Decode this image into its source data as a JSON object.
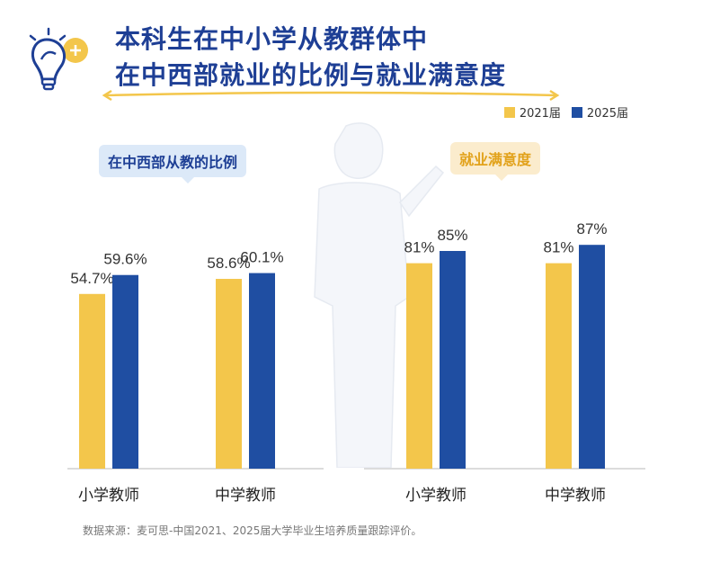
{
  "title": {
    "line1": "本科生在中小学从教群体中",
    "line2": "在中西部就业的比例与就业满意度"
  },
  "legend": {
    "items": [
      {
        "label": "2021届",
        "color": "#f3c64b"
      },
      {
        "label": "2025届",
        "color": "#1f4ea2"
      }
    ]
  },
  "badges": {
    "left": "在中西部从教的比例",
    "right": "就业满意度"
  },
  "source": "数据来源：麦可思-中国2021、2025届大学毕业生培养质量跟踪评价。",
  "chart_data": [
    {
      "type": "bar",
      "title": "在中西部从教的比例",
      "categories": [
        "小学教师",
        "中学教师"
      ],
      "series": [
        {
          "name": "2021届",
          "values": [
            54.7,
            58.6
          ],
          "labels": [
            "54.7%",
            "58.6%"
          ],
          "color": "#f3c64b"
        },
        {
          "name": "2025届",
          "values": [
            59.6,
            60.1
          ],
          "labels": [
            "59.6%",
            "60.1%"
          ],
          "color": "#1f4ea2"
        }
      ]
    },
    {
      "type": "bar",
      "title": "就业满意度",
      "categories": [
        "小学教师",
        "中学教师"
      ],
      "series": [
        {
          "name": "2021届",
          "values": [
            81,
            81
          ],
          "labels": [
            "81%",
            "81%"
          ],
          "color": "#f3c64b"
        },
        {
          "name": "2025届",
          "values": [
            85,
            87
          ],
          "labels": [
            "85%",
            "87%"
          ],
          "color": "#1f4ea2"
        }
      ]
    }
  ]
}
